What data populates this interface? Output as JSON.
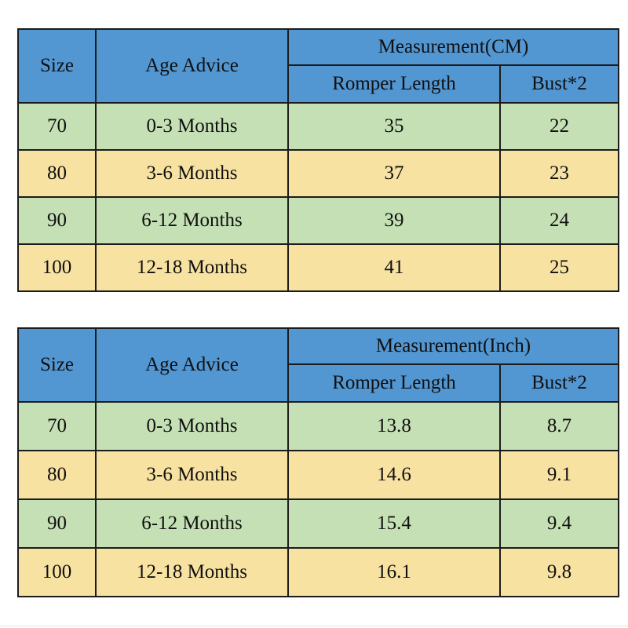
{
  "colors": {
    "header_blue": "#5296d2",
    "row_green": "#c5e0b4",
    "row_tan": "#f8e2a2",
    "size_yellow": "#ffff00",
    "grid_border": "#1c1c1c",
    "text": "#101010",
    "background": "#ffffff"
  },
  "chart_data": [
    {
      "type": "table",
      "title": "Measurement(CM)",
      "header": {
        "size": "Size",
        "age_advice": "Age Advice",
        "measurement_group": "Measurement(CM)",
        "sub_col_1": "Romper Length",
        "sub_col_2": "Bust*2"
      },
      "rows": [
        {
          "size": "70",
          "age": "0-3 Months",
          "romper_length": "35",
          "bust2": "22"
        },
        {
          "size": "80",
          "age": "3-6 Months",
          "romper_length": "37",
          "bust2": "23"
        },
        {
          "size": "90",
          "age": "6-12 Months",
          "romper_length": "39",
          "bust2": "24"
        },
        {
          "size": "100",
          "age": "12-18 Months",
          "romper_length": "41",
          "bust2": "25"
        }
      ]
    },
    {
      "type": "table",
      "title": "Measurement(Inch)",
      "header": {
        "size": "Size",
        "age_advice": "Age Advice",
        "measurement_group": "Measurement(Inch)",
        "sub_col_1": "Romper Length",
        "sub_col_2": "Bust*2"
      },
      "rows": [
        {
          "size": "70",
          "age": "0-3 Months",
          "romper_length": "13.8",
          "bust2": "8.7"
        },
        {
          "size": "80",
          "age": "3-6 Months",
          "romper_length": "14.6",
          "bust2": "9.1"
        },
        {
          "size": "90",
          "age": "6-12 Months",
          "romper_length": "15.4",
          "bust2": "9.4"
        },
        {
          "size": "100",
          "age": "12-18 Months",
          "romper_length": "16.1",
          "bust2": "9.8"
        }
      ]
    }
  ]
}
